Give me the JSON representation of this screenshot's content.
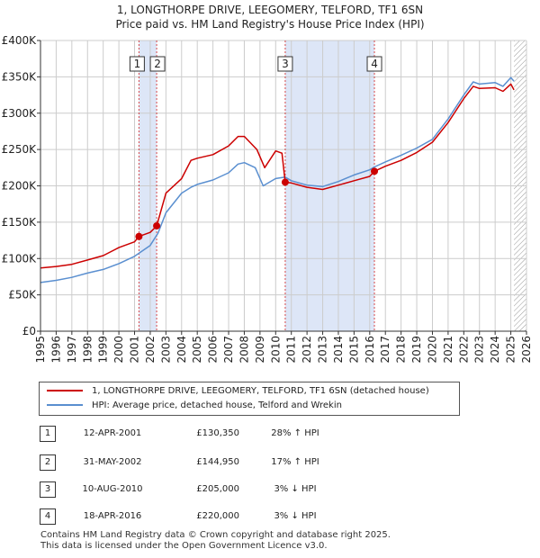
{
  "chart_data": {
    "type": "line",
    "title": "1, LONGTHORPE DRIVE, LEEGOMERY, TELFORD, TF1 6SN",
    "subtitle": "Price paid vs. HM Land Registry's House Price Index (HPI)",
    "xlim": [
      1995,
      2026
    ],
    "ylim": [
      0,
      400000
    ],
    "xticks": [
      1995,
      1996,
      1997,
      1998,
      1999,
      2000,
      2001,
      2002,
      2003,
      2004,
      2005,
      2006,
      2007,
      2008,
      2009,
      2010,
      2011,
      2012,
      2013,
      2014,
      2015,
      2016,
      2017,
      2018,
      2019,
      2020,
      2021,
      2022,
      2023,
      2024,
      2025,
      2026
    ],
    "ytick_values": [
      0,
      50000,
      100000,
      150000,
      200000,
      250000,
      300000,
      350000,
      400000
    ],
    "ytick_labels": [
      "£0",
      "£50K",
      "£100K",
      "£150K",
      "£200K",
      "£250K",
      "£300K",
      "£350K",
      "£400K"
    ],
    "grid": true,
    "series": [
      {
        "name": "1, LONGTHORPE DRIVE, LEEGOMERY, TELFORD, TF1 6SN (detached house)",
        "color": "#cc0000",
        "x": [
          1995.0,
          1996.0,
          1997.0,
          1998.0,
          1999.0,
          2000.0,
          2001.0,
          2001.28,
          2002.0,
          2002.41,
          2003.0,
          2004.0,
          2004.6,
          2005.0,
          2006.0,
          2007.0,
          2007.6,
          2008.0,
          2008.8,
          2009.3,
          2010.0,
          2010.4,
          2010.61,
          2011.0,
          2012.0,
          2013.0,
          2014.0,
          2015.0,
          2016.0,
          2016.3,
          2017.0,
          2018.0,
          2019.0,
          2020.0,
          2021.0,
          2022.0,
          2022.6,
          2023.0,
          2024.0,
          2024.5,
          2025.0,
          2025.2
        ],
        "y": [
          87000,
          89000,
          92000,
          98000,
          104000,
          115000,
          123000,
          130350,
          136000,
          144950,
          190000,
          210000,
          235000,
          238000,
          243000,
          255000,
          268000,
          268000,
          250000,
          225000,
          248000,
          245000,
          205000,
          204000,
          198000,
          195000,
          201000,
          207000,
          213000,
          220000,
          227000,
          235000,
          246000,
          260000,
          287000,
          320000,
          337000,
          334000,
          335000,
          330000,
          340000,
          332000
        ]
      },
      {
        "name": "HPI: Average price, detached house, Telford and Wrekin",
        "color": "#5a8fd0",
        "x": [
          1995.0,
          1996.0,
          1997.0,
          1998.0,
          1999.0,
          2000.0,
          2001.0,
          2002.0,
          2002.5,
          2003.0,
          2004.0,
          2004.6,
          2005.0,
          2006.0,
          2007.0,
          2007.6,
          2008.0,
          2008.7,
          2009.2,
          2010.0,
          2010.61,
          2011.0,
          2012.0,
          2013.0,
          2014.0,
          2015.0,
          2016.0,
          2016.3,
          2017.0,
          2018.0,
          2019.0,
          2020.0,
          2021.0,
          2022.0,
          2022.6,
          2023.0,
          2024.0,
          2024.5,
          2025.0,
          2025.2
        ],
        "y": [
          67000,
          70000,
          74000,
          80000,
          85000,
          93000,
          103000,
          118000,
          135000,
          163000,
          190000,
          198000,
          202000,
          208000,
          218000,
          230000,
          232000,
          225000,
          200000,
          210000,
          212000,
          207000,
          201000,
          199000,
          206000,
          215000,
          222000,
          226000,
          233000,
          242000,
          252000,
          264000,
          292000,
          325000,
          343000,
          340000,
          342000,
          337000,
          349000,
          344000
        ]
      }
    ],
    "sales": [
      {
        "num": "1",
        "x": 2001.28,
        "price": 130350
      },
      {
        "num": "2",
        "x": 2002.41,
        "price": 144950
      },
      {
        "num": "3",
        "x": 2010.61,
        "price": 205000
      },
      {
        "num": "4",
        "x": 2016.3,
        "price": 220000
      }
    ],
    "shaded_ranges": [
      [
        2001.28,
        2002.41
      ],
      [
        2010.61,
        2016.3
      ]
    ],
    "hatch_from": 2025.2
  },
  "legend": {
    "property": "1, LONGTHORPE DRIVE, LEEGOMERY, TELFORD, TF1 6SN (detached house)",
    "hpi": "HPI: Average price, detached house, Telford and Wrekin"
  },
  "table": [
    {
      "num": "1",
      "date": "12-APR-2001",
      "price": "£130,350",
      "hpi": "28% ↑ HPI"
    },
    {
      "num": "2",
      "date": "31-MAY-2002",
      "price": "£144,950",
      "hpi": "17% ↑ HPI"
    },
    {
      "num": "3",
      "date": "10-AUG-2010",
      "price": "£205,000",
      "hpi": "3% ↓ HPI"
    },
    {
      "num": "4",
      "date": "18-APR-2016",
      "price": "£220,000",
      "hpi": "3% ↓ HPI"
    }
  ],
  "footer": {
    "line1": "Contains HM Land Registry data © Crown copyright and database right 2025.",
    "line2": "This data is licensed under the Open Government Licence v3.0."
  },
  "colors": {
    "property": "#cc0000",
    "hpi": "#5a8fd0",
    "shade": "#dde6f7",
    "grid": "#cccccc"
  }
}
